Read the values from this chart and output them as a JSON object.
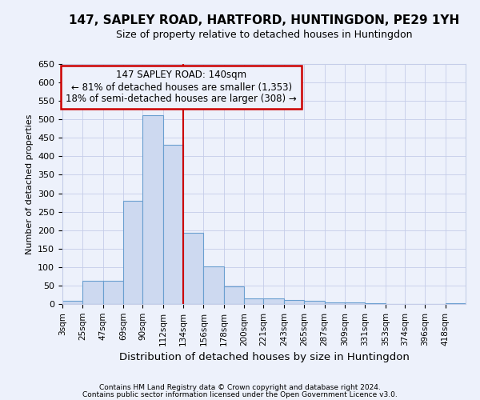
{
  "title": "147, SAPLEY ROAD, HARTFORD, HUNTINGDON, PE29 1YH",
  "subtitle": "Size of property relative to detached houses in Huntingdon",
  "xlabel": "Distribution of detached houses by size in Huntingdon",
  "ylabel": "Number of detached properties",
  "footer1": "Contains HM Land Registry data © Crown copyright and database right 2024.",
  "footer2": "Contains public sector information licensed under the Open Government Licence v3.0.",
  "annotation_title": "147 SAPLEY ROAD: 140sqm",
  "annotation_line1": "← 81% of detached houses are smaller (1,353)",
  "annotation_line2": "18% of semi-detached houses are larger (308) →",
  "bar_edges": [
    3,
    25,
    47,
    69,
    90,
    112,
    134,
    156,
    178,
    200,
    221,
    243,
    265,
    287,
    309,
    331,
    353,
    374,
    396,
    418,
    440
  ],
  "bar_heights": [
    8,
    63,
    63,
    280,
    512,
    432,
    192,
    101,
    47,
    15,
    16,
    10,
    8,
    5,
    4,
    2,
    1,
    0,
    0,
    2
  ],
  "bar_color": "#cdd9f0",
  "bar_edge_color": "#6a9fd0",
  "vline_color": "#cc0000",
  "vline_x": 134,
  "annotation_box_color": "#cc0000",
  "background_color": "#edf1fb",
  "grid_color": "#c5cde8",
  "ylim": [
    0,
    650
  ],
  "yticks": [
    0,
    50,
    100,
    150,
    200,
    250,
    300,
    350,
    400,
    450,
    500,
    550,
    600,
    650
  ],
  "title_fontsize": 11,
  "subtitle_fontsize": 9,
  "xlabel_fontsize": 9.5,
  "ylabel_fontsize": 8,
  "tick_fontsize": 8,
  "xtick_fontsize": 7.5,
  "footer_fontsize": 6.5,
  "annotation_fontsize": 8.5
}
